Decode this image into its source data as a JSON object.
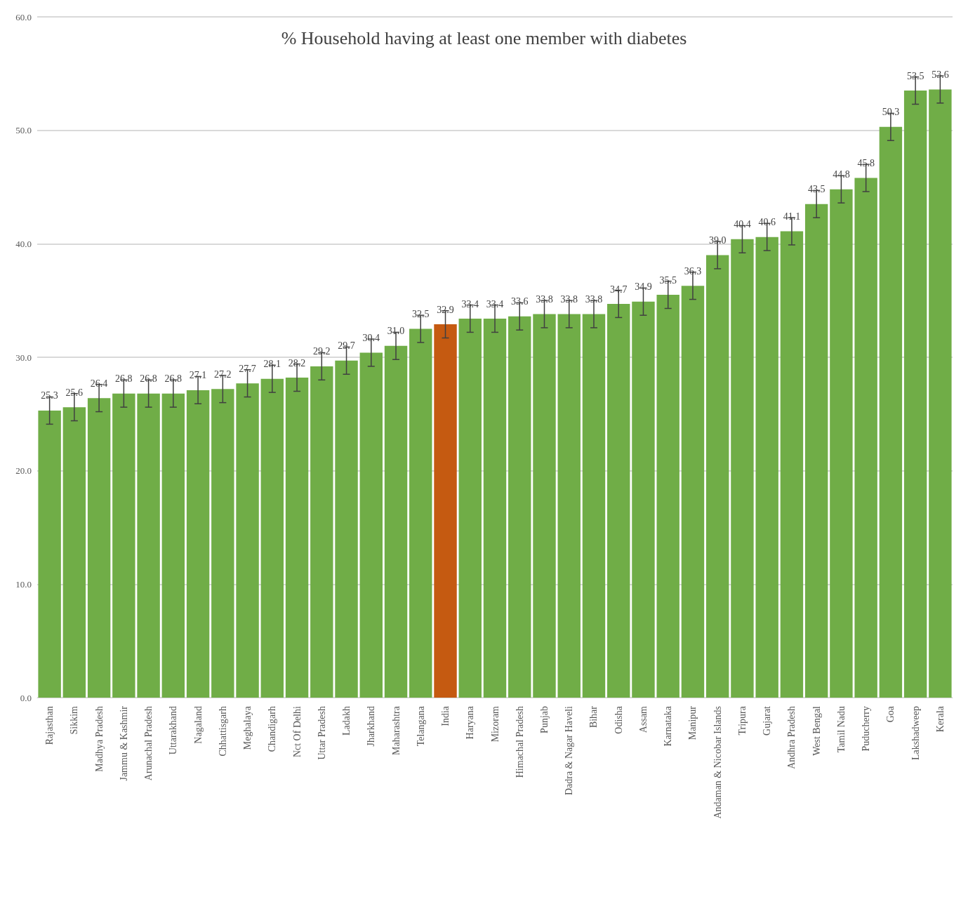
{
  "chart_data": {
    "type": "bar",
    "title": "% Household having at least one member with diabetes",
    "categories": [
      "Rajasthan",
      "Sikkim",
      "Madhya Pradesh",
      "Jammu & Kashmir",
      "Arunachal Pradesh",
      "Uttarakhand",
      "Nagaland",
      "Chhattisgarh",
      "Meghalaya",
      "Chandigarh",
      "Nct Of Delhi",
      "Uttar Pradesh",
      "Ladakh",
      "Jharkhand",
      "Maharashtra",
      "Telangana",
      "India",
      "Haryana",
      "Mizoram",
      "Himachal Pradesh",
      "Punjab",
      "Dadra & Nagar Haveli",
      "Bihar",
      "Odisha",
      "Assam",
      "Karnataka",
      "Manipur",
      "Andaman & Nicobar Islands",
      "Tripura",
      "Gujarat",
      "Andhra Pradesh",
      "West Bengal",
      "Tamil Nadu",
      "Puducherry",
      "Goa",
      "Lakshadweep",
      "Kerala"
    ],
    "values": [
      25.3,
      25.6,
      26.4,
      26.8,
      26.8,
      26.8,
      27.1,
      27.2,
      27.7,
      28.1,
      28.2,
      29.2,
      29.7,
      30.4,
      31.0,
      32.5,
      32.9,
      33.4,
      33.4,
      33.6,
      33.8,
      33.8,
      33.8,
      34.7,
      34.9,
      35.5,
      36.3,
      39.0,
      40.4,
      40.6,
      41.1,
      43.5,
      44.8,
      45.8,
      50.3,
      53.5,
      53.6
    ],
    "value_labels": [
      "25.3",
      "25.6",
      "26.4",
      "26.8",
      "26.8",
      "26.8",
      "27.1",
      "27.2",
      "27.7",
      "28.1",
      "28.2",
      "29.2",
      "29.7",
      "30.4",
      "31.0",
      "32.5",
      "32.9",
      "33.4",
      "33.4",
      "33.6",
      "33.8",
      "33.8",
      "33.8",
      "34.7",
      "34.9",
      "35.5",
      "36.3",
      "39.0",
      "40.4",
      "40.6",
      "41.1",
      "43.5",
      "44.8",
      "45.8",
      "50.3",
      "53.5",
      "53.6"
    ],
    "errors": [
      1.2,
      1.2,
      1.2,
      1.2,
      1.2,
      1.2,
      1.2,
      1.2,
      1.2,
      1.2,
      1.2,
      1.2,
      1.2,
      1.2,
      1.2,
      1.2,
      1.2,
      1.2,
      1.2,
      1.2,
      1.2,
      1.2,
      1.2,
      1.2,
      1.2,
      1.2,
      1.2,
      1.2,
      1.2,
      1.2,
      1.2,
      1.2,
      1.2,
      1.2,
      1.2,
      1.2,
      1.2
    ],
    "colors": [
      "#70ad47",
      "#70ad47",
      "#70ad47",
      "#70ad47",
      "#70ad47",
      "#70ad47",
      "#70ad47",
      "#70ad47",
      "#70ad47",
      "#70ad47",
      "#70ad47",
      "#70ad47",
      "#70ad47",
      "#70ad47",
      "#70ad47",
      "#70ad47",
      "#c55a11",
      "#70ad47",
      "#70ad47",
      "#70ad47",
      "#70ad47",
      "#70ad47",
      "#70ad47",
      "#70ad47",
      "#70ad47",
      "#70ad47",
      "#70ad47",
      "#70ad47",
      "#70ad47",
      "#70ad47",
      "#70ad47",
      "#70ad47",
      "#70ad47",
      "#70ad47",
      "#70ad47",
      "#70ad47",
      "#70ad47"
    ],
    "ylim": [
      0,
      60
    ],
    "yticks": [
      {
        "value": 0,
        "label": "0.0"
      },
      {
        "value": 10,
        "label": "10.0"
      },
      {
        "value": 20,
        "label": "20.0"
      },
      {
        "value": 30,
        "label": "30.0"
      },
      {
        "value": 40,
        "label": "40.0"
      },
      {
        "value": 50,
        "label": "50.0"
      },
      {
        "value": 60,
        "label": "60.0"
      }
    ],
    "grid": "y"
  }
}
